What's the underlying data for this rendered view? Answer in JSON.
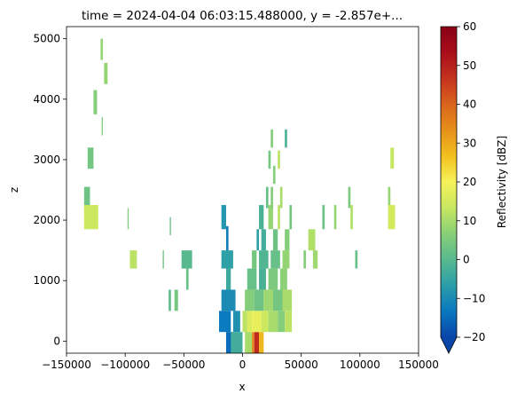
{
  "chart_data": {
    "type": "heatmap",
    "title": "time = 2024-04-04 06:03:15.488000, y = -2.857e+...",
    "xlabel": "x",
    "ylabel": "z",
    "xlim": [
      -150000,
      150000
    ],
    "ylim": [
      -200,
      5200
    ],
    "x_ticks": [
      -150000,
      -100000,
      -50000,
      0,
      50000,
      100000,
      150000
    ],
    "x_tick_labels": [
      "−150000",
      "−100000",
      "−50000",
      "0",
      "50000",
      "100000",
      "150000"
    ],
    "y_ticks": [
      0,
      1000,
      2000,
      3000,
      4000,
      5000
    ],
    "y_tick_labels": [
      "0",
      "1000",
      "2000",
      "3000",
      "4000",
      "5000"
    ],
    "colorbar": {
      "label": "Reflectivity [dBZ]",
      "min": -20,
      "max": 60,
      "extend": "min",
      "ticks": [
        -20,
        -10,
        0,
        10,
        20,
        30,
        40,
        50,
        60
      ],
      "tick_labels": [
        "−20",
        "−10",
        "0",
        "10",
        "20",
        "30",
        "40",
        "50",
        "60"
      ],
      "colormap": "HomeyerRainbow",
      "stops": [
        "#0a45a8",
        "#0a78c0",
        "#2b9da8",
        "#58b98e",
        "#89cf78",
        "#c7e760",
        "#f7f25a",
        "#f2c01e",
        "#e6901a",
        "#d9641d",
        "#c5321e",
        "#a80d1a",
        "#8a0018"
      ],
      "under_color": "#0a45a8"
    },
    "cells": [
      [
        -121000,
        -119000,
        4650,
        5000,
        8
      ],
      [
        -118000,
        -115000,
        4250,
        4600,
        8
      ],
      [
        -127000,
        -124000,
        3750,
        4150,
        6
      ],
      [
        -120000,
        -119000,
        3400,
        3700,
        5
      ],
      [
        -132000,
        -127000,
        2850,
        3200,
        4
      ],
      [
        -135000,
        -130000,
        2200,
        2550,
        3
      ],
      [
        -135000,
        -123000,
        1850,
        2250,
        14
      ],
      [
        -98000,
        -97000,
        1850,
        2200,
        6
      ],
      [
        -96000,
        -90000,
        1200,
        1500,
        12
      ],
      [
        -68000,
        -67000,
        1200,
        1500,
        3
      ],
      [
        -62000,
        -61000,
        1750,
        2050,
        2
      ],
      [
        -52000,
        -43000,
        1200,
        1500,
        0
      ],
      [
        -48000,
        -46000,
        850,
        1200,
        2
      ],
      [
        -63000,
        -61000,
        500,
        850,
        1
      ],
      [
        -58000,
        -55000,
        500,
        850,
        4
      ],
      [
        -18000,
        -14000,
        1850,
        2250,
        -8
      ],
      [
        -14000,
        -12000,
        1450,
        1900,
        -12
      ],
      [
        -18000,
        -8000,
        1200,
        1500,
        -6
      ],
      [
        -14000,
        -10000,
        850,
        1200,
        -4
      ],
      [
        -18000,
        -6000,
        500,
        850,
        -10
      ],
      [
        -20000,
        -10000,
        150,
        500,
        -13
      ],
      [
        -14000,
        -8000,
        -200,
        150,
        -15
      ],
      [
        -8000,
        -2000,
        150,
        500,
        -9
      ],
      [
        -10000,
        0,
        -200,
        150,
        -3
      ],
      [
        0,
        4000,
        150,
        500,
        12
      ],
      [
        2000,
        8000,
        -200,
        150,
        10
      ],
      [
        8000,
        10000,
        -200,
        150,
        35
      ],
      [
        10000,
        14000,
        -200,
        150,
        48
      ],
      [
        14000,
        18000,
        -200,
        150,
        28
      ],
      [
        4000,
        8000,
        150,
        500,
        16
      ],
      [
        8000,
        16000,
        150,
        500,
        18
      ],
      [
        16000,
        22000,
        150,
        500,
        14
      ],
      [
        22000,
        30000,
        150,
        500,
        10
      ],
      [
        30000,
        36000,
        150,
        500,
        6
      ],
      [
        36000,
        42000,
        150,
        500,
        12
      ],
      [
        2000,
        10000,
        500,
        850,
        6
      ],
      [
        10000,
        18000,
        500,
        850,
        3
      ],
      [
        18000,
        26000,
        500,
        850,
        9
      ],
      [
        26000,
        34000,
        500,
        850,
        4
      ],
      [
        34000,
        42000,
        500,
        850,
        10
      ],
      [
        4000,
        12000,
        850,
        1200,
        2
      ],
      [
        14000,
        20000,
        850,
        1200,
        -2
      ],
      [
        22000,
        30000,
        850,
        1200,
        5
      ],
      [
        32000,
        38000,
        850,
        1200,
        7
      ],
      [
        8000,
        12000,
        1200,
        1500,
        4
      ],
      [
        14000,
        22000,
        1200,
        1500,
        -1
      ],
      [
        24000,
        32000,
        1200,
        1500,
        2
      ],
      [
        34000,
        40000,
        1200,
        1500,
        8
      ],
      [
        52000,
        54000,
        1200,
        1500,
        6
      ],
      [
        60000,
        64000,
        1200,
        1500,
        9
      ],
      [
        12000,
        14000,
        1500,
        1850,
        -6
      ],
      [
        16000,
        20000,
        1500,
        1850,
        -3
      ],
      [
        26000,
        30000,
        1500,
        1850,
        3
      ],
      [
        36000,
        40000,
        1500,
        1850,
        6
      ],
      [
        56000,
        62000,
        1500,
        1850,
        11
      ],
      [
        14000,
        18000,
        1850,
        2250,
        -2
      ],
      [
        22000,
        26000,
        1850,
        2250,
        8
      ],
      [
        30000,
        32000,
        1850,
        2250,
        12
      ],
      [
        40000,
        42000,
        1850,
        2250,
        4
      ],
      [
        68000,
        70000,
        1850,
        2250,
        3
      ],
      [
        78000,
        80000,
        1850,
        2250,
        8
      ],
      [
        20000,
        22000,
        2200,
        2550,
        2
      ],
      [
        24000,
        26000,
        2200,
        2550,
        6
      ],
      [
        32000,
        34000,
        2200,
        2550,
        10
      ],
      [
        22000,
        24000,
        2850,
        3150,
        4
      ],
      [
        26000,
        28000,
        2600,
        2900,
        6
      ],
      [
        30000,
        32000,
        2850,
        3150,
        12
      ],
      [
        24000,
        26000,
        3200,
        3500,
        6
      ],
      [
        36000,
        38000,
        3200,
        3500,
        -2
      ],
      [
        90000,
        92000,
        2200,
        2550,
        5
      ],
      [
        92000,
        94000,
        1850,
        2250,
        11
      ],
      [
        96000,
        98000,
        1200,
        1500,
        2
      ],
      [
        124000,
        126000,
        2200,
        2550,
        8
      ],
      [
        124000,
        130000,
        1850,
        2250,
        15
      ],
      [
        126000,
        129000,
        2850,
        3200,
        13
      ]
    ]
  }
}
